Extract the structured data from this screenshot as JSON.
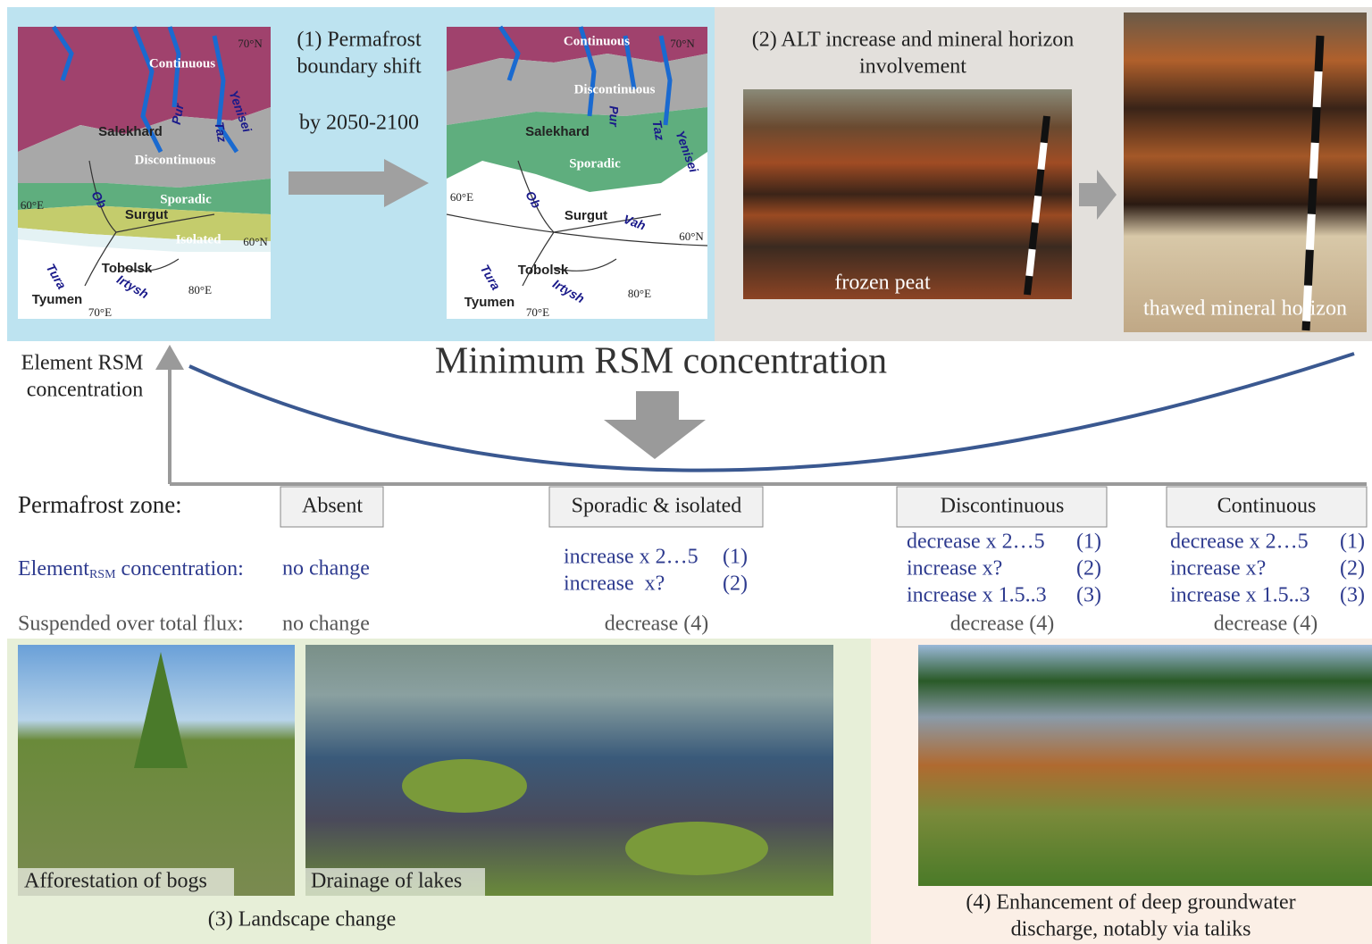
{
  "panel_1": {
    "title_lines": [
      "(1) Permafrost",
      "boundary shift"
    ],
    "period": "by 2050-2100",
    "current_map_labels": [
      "70°N",
      "Continuous",
      "Yenisei",
      "Pur",
      "Salekhard",
      "Taz",
      "Discontinuous",
      "60°E",
      "Ob",
      "Sporadic",
      "Surgut",
      "Isolated",
      "60°N",
      "Tobolsk",
      "Tura",
      "Irtysh",
      "80°E",
      "Tyumen",
      "70°E"
    ],
    "future_map_labels": [
      "Continuous",
      "70°N",
      "Discontinuous",
      "Pur",
      "Salekhard",
      "Taz",
      "Yenisei",
      "Sporadic",
      "60°E",
      "Ob",
      "Surgut",
      "Vah",
      "60°N",
      "Tobolsk",
      "Tura",
      "Irtysh",
      "80°E",
      "Tyumen",
      "70°E"
    ]
  },
  "panel_2": {
    "title_lines": [
      "(2) ALT increase and mineral horizon",
      "involvement"
    ],
    "photo_left_caption": "frozen peat",
    "photo_right_caption": "thawed mineral horizon"
  },
  "axis": {
    "y_label_lines": [
      "Element RSM",
      "concentration"
    ],
    "title": "Minimum RSM concentration"
  },
  "table": {
    "zone_label": "Permafrost zone:",
    "element_label": {
      "main": "Element",
      "subscript": "RSM",
      "rest": "concentration:"
    },
    "flux_label": "Suspended over total flux:",
    "columns": [
      {
        "zone": "Absent",
        "element": [
          {
            "text": "no change"
          }
        ],
        "flux": "no change"
      },
      {
        "zone": "Sporadic & isolated",
        "element": [
          {
            "text": "increase x 2…5",
            "ref": "(1)"
          },
          {
            "text": "increase  x?",
            "ref": "(2)"
          }
        ],
        "flux": "decrease (4)"
      },
      {
        "zone": "Discontinuous",
        "element": [
          {
            "text": "decrease x 2…5",
            "ref": "(1)"
          },
          {
            "text": "increase x?",
            "ref": "(2)"
          },
          {
            "text": "increase x 1.5..3",
            "ref": "(3)"
          }
        ],
        "flux": "decrease (4)"
      },
      {
        "zone": "Continuous",
        "element": [
          {
            "text": "decrease x 2…5",
            "ref": "(1)"
          },
          {
            "text": "increase x?",
            "ref": "(2)"
          },
          {
            "text": "increase x 1.5..3",
            "ref": "(3)"
          }
        ],
        "flux": "decrease (4)"
      }
    ]
  },
  "panel_3": {
    "photo_captions": [
      "Afforestation of bogs",
      "Drainage of lakes"
    ],
    "title": "(3) Landscape change"
  },
  "panel_4": {
    "title_lines": [
      "(4) Enhancement of deep groundwater",
      "discharge, notably via taliks"
    ]
  }
}
